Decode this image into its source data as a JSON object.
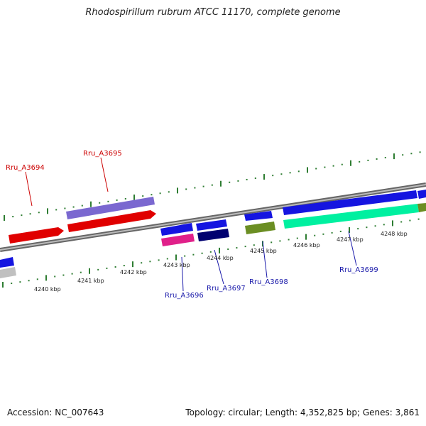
{
  "title": "Rhodospirillum rubrum ATCC 11170, complete genome",
  "footer": {
    "accession": "Accession: NC_007643",
    "summary": "Topology: circular; Length: 4,352,825 bp; Genes: 3,861"
  },
  "colors": {
    "backbone": "#888888",
    "tick": "#2e7d32",
    "top_label": "#cc0000",
    "bottom_label": "#1a1aaa"
  },
  "scale_labels": [
    "4240 kbp",
    "4241 kbp",
    "4242 kbp",
    "4243 kbp",
    "4244 kbp",
    "4245 kbp",
    "4246 kbp",
    "4247 kbp",
    "4248 kbp"
  ],
  "gene_labels": {
    "top": [
      "Rru_A3694",
      "Rru_A3695"
    ],
    "bottom": [
      "Rru_A3696",
      "Rru_A3697",
      "Rru_A3698",
      "Rru_A3699"
    ]
  }
}
